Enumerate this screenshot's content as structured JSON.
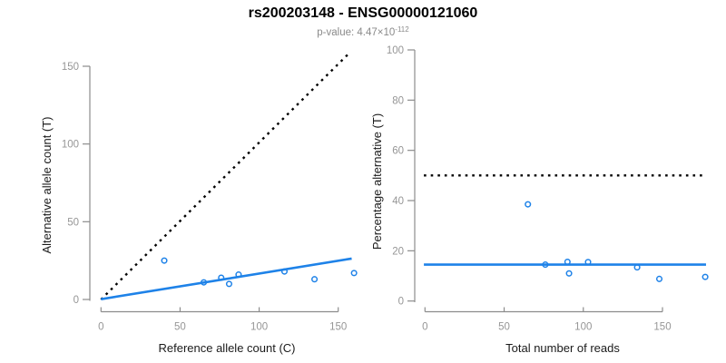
{
  "header": {
    "title": "rs200203148 - ENSG00000121060",
    "pvalue_prefix": "p-value: ",
    "pvalue_mantissa": "4.47×10",
    "pvalue_exponent": "-112"
  },
  "colors": {
    "accent_blue": "#1e82e8",
    "reference_black": "#000000",
    "axis_gray": "#8c8c8c",
    "tick_text_gray": "#969696",
    "label_black": "#1a1a1a",
    "subtitle_gray": "#8a8a8a"
  },
  "chart_data": [
    {
      "type": "scatter",
      "panel": "left",
      "title": "",
      "xlabel": "Reference allele count (C)",
      "ylabel": "Alternative allele count (T)",
      "xlim": [
        0,
        160
      ],
      "ylim": [
        0,
        157
      ],
      "xticks": [
        0,
        50,
        100,
        150
      ],
      "yticks": [
        0,
        50,
        100,
        150
      ],
      "grid": false,
      "points": [
        [
          40,
          25
        ],
        [
          65,
          11
        ],
        [
          76,
          14
        ],
        [
          81,
          10
        ],
        [
          87,
          16
        ],
        [
          116,
          18
        ],
        [
          135,
          13
        ],
        [
          160,
          17
        ]
      ],
      "lines": [
        {
          "name": "identity-line",
          "style": "dotted",
          "color": "black",
          "x1": 0,
          "y1": 0,
          "x2": 157.5,
          "y2": 159
        },
        {
          "name": "fit-line",
          "style": "solid",
          "color": "blue",
          "x1": 0,
          "y1": 0.2,
          "x2": 158.5,
          "y2": 26.3
        }
      ]
    },
    {
      "type": "scatter",
      "panel": "right",
      "title": "",
      "xlabel": "Total number of reads",
      "ylabel": "Percentage alternative (T)",
      "xlim": [
        0,
        178
      ],
      "ylim": [
        0,
        100
      ],
      "xticks": [
        0,
        50,
        100,
        150
      ],
      "yticks": [
        0,
        20,
        40,
        60,
        80,
        100
      ],
      "grid": false,
      "points": [
        [
          65,
          38.5
        ],
        [
          76,
          14.5
        ],
        [
          90,
          15.6
        ],
        [
          91,
          11
        ],
        [
          103,
          15.5
        ],
        [
          134,
          13.4
        ],
        [
          148,
          8.8
        ],
        [
          177,
          9.6
        ]
      ],
      "lines": [
        {
          "name": "expected-50pct-line",
          "style": "dotted",
          "color": "black",
          "x1": -0.7,
          "y1": 50,
          "x2": 177.5,
          "y2": 50
        },
        {
          "name": "fit-line",
          "style": "solid",
          "color": "blue",
          "x1": -0.7,
          "y1": 14.5,
          "x2": 177.5,
          "y2": 14.5
        }
      ]
    }
  ]
}
